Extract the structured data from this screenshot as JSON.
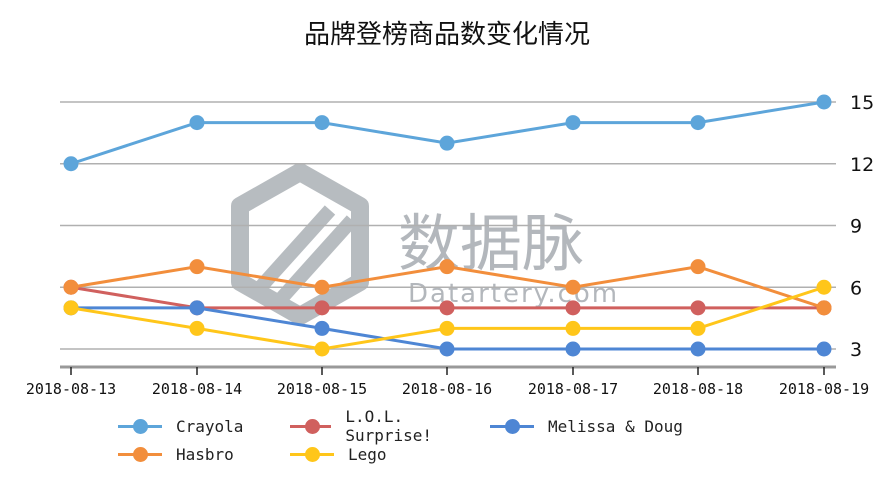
{
  "chart_data": {
    "type": "line",
    "title": "品牌登榜商品数变化情况",
    "xlabel": "",
    "ylabel": "",
    "categories": [
      "2018-08-13",
      "2018-08-14",
      "2018-08-15",
      "2018-08-16",
      "2018-08-17",
      "2018-08-18",
      "2018-08-19"
    ],
    "y_ticks": [
      3,
      6,
      9,
      12,
      15
    ],
    "ylim": [
      2,
      16
    ],
    "y_axis_position": "right",
    "grid": true,
    "legend_position": "bottom",
    "series": [
      {
        "name": "Crayola",
        "color": "#5DA5DA",
        "values": [
          12,
          14,
          14,
          13,
          14,
          14,
          15
        ]
      },
      {
        "name": "L.O.L. Surprise!",
        "color": "#D0605E",
        "values": [
          6,
          5,
          5,
          5,
          5,
          5,
          5
        ]
      },
      {
        "name": "Melissa & Doug",
        "color": "#4E86D4",
        "values": [
          5,
          5,
          4,
          3,
          3,
          3,
          3
        ]
      },
      {
        "name": "Hasbro",
        "color": "#F28E3C",
        "values": [
          6,
          7,
          6,
          7,
          6,
          7,
          5
        ]
      },
      {
        "name": "Lego",
        "color": "#FFC61A",
        "values": [
          5,
          4,
          3,
          4,
          4,
          4,
          6
        ]
      }
    ]
  },
  "watermark": {
    "cn_text": "数据脉",
    "en_text": "Datartery.com"
  }
}
